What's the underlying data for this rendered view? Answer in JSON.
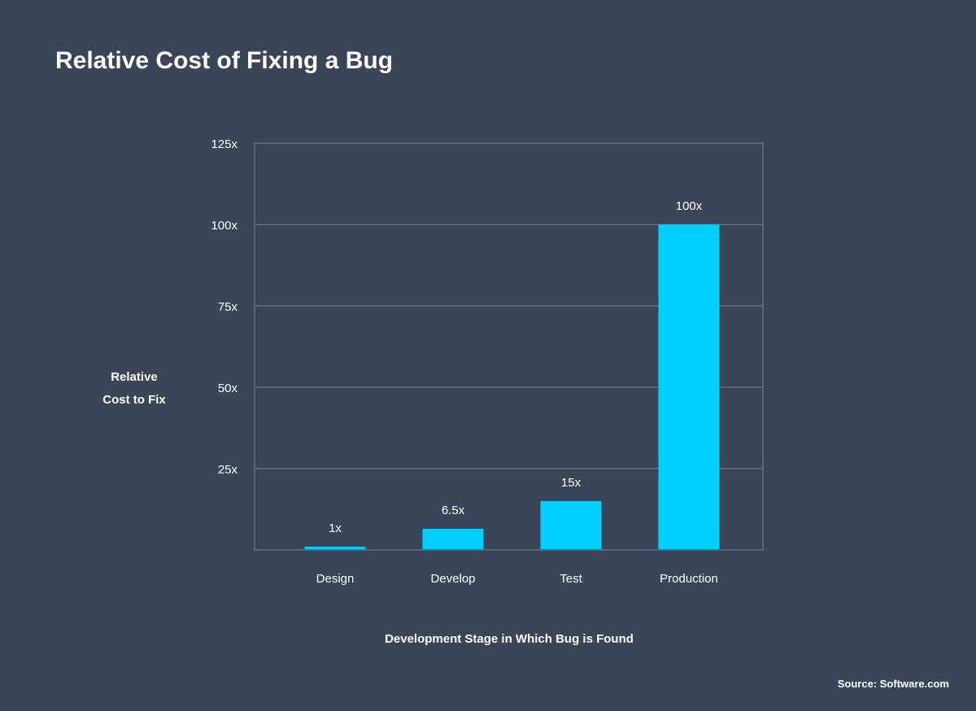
{
  "chart_data": {
    "type": "bar",
    "title": "Relative Cost of Fixing a Bug",
    "xlabel": "Development Stage in Which Bug is Found",
    "ylabel": [
      "Relative",
      "Cost to Fix"
    ],
    "categories": [
      "Design",
      "Develop",
      "Test",
      "Production"
    ],
    "values": [
      1,
      6.5,
      15,
      100
    ],
    "data_labels": [
      "1x",
      "6.5x",
      "15x",
      "100x"
    ],
    "yticks": [
      25,
      50,
      75,
      100,
      125
    ],
    "ytick_labels": [
      "25x",
      "50x",
      "75x",
      "100x",
      "125x"
    ],
    "ylim": [
      0,
      125
    ],
    "grid": true,
    "bar_color": "#00cfff",
    "source": "Source: Software.com"
  }
}
